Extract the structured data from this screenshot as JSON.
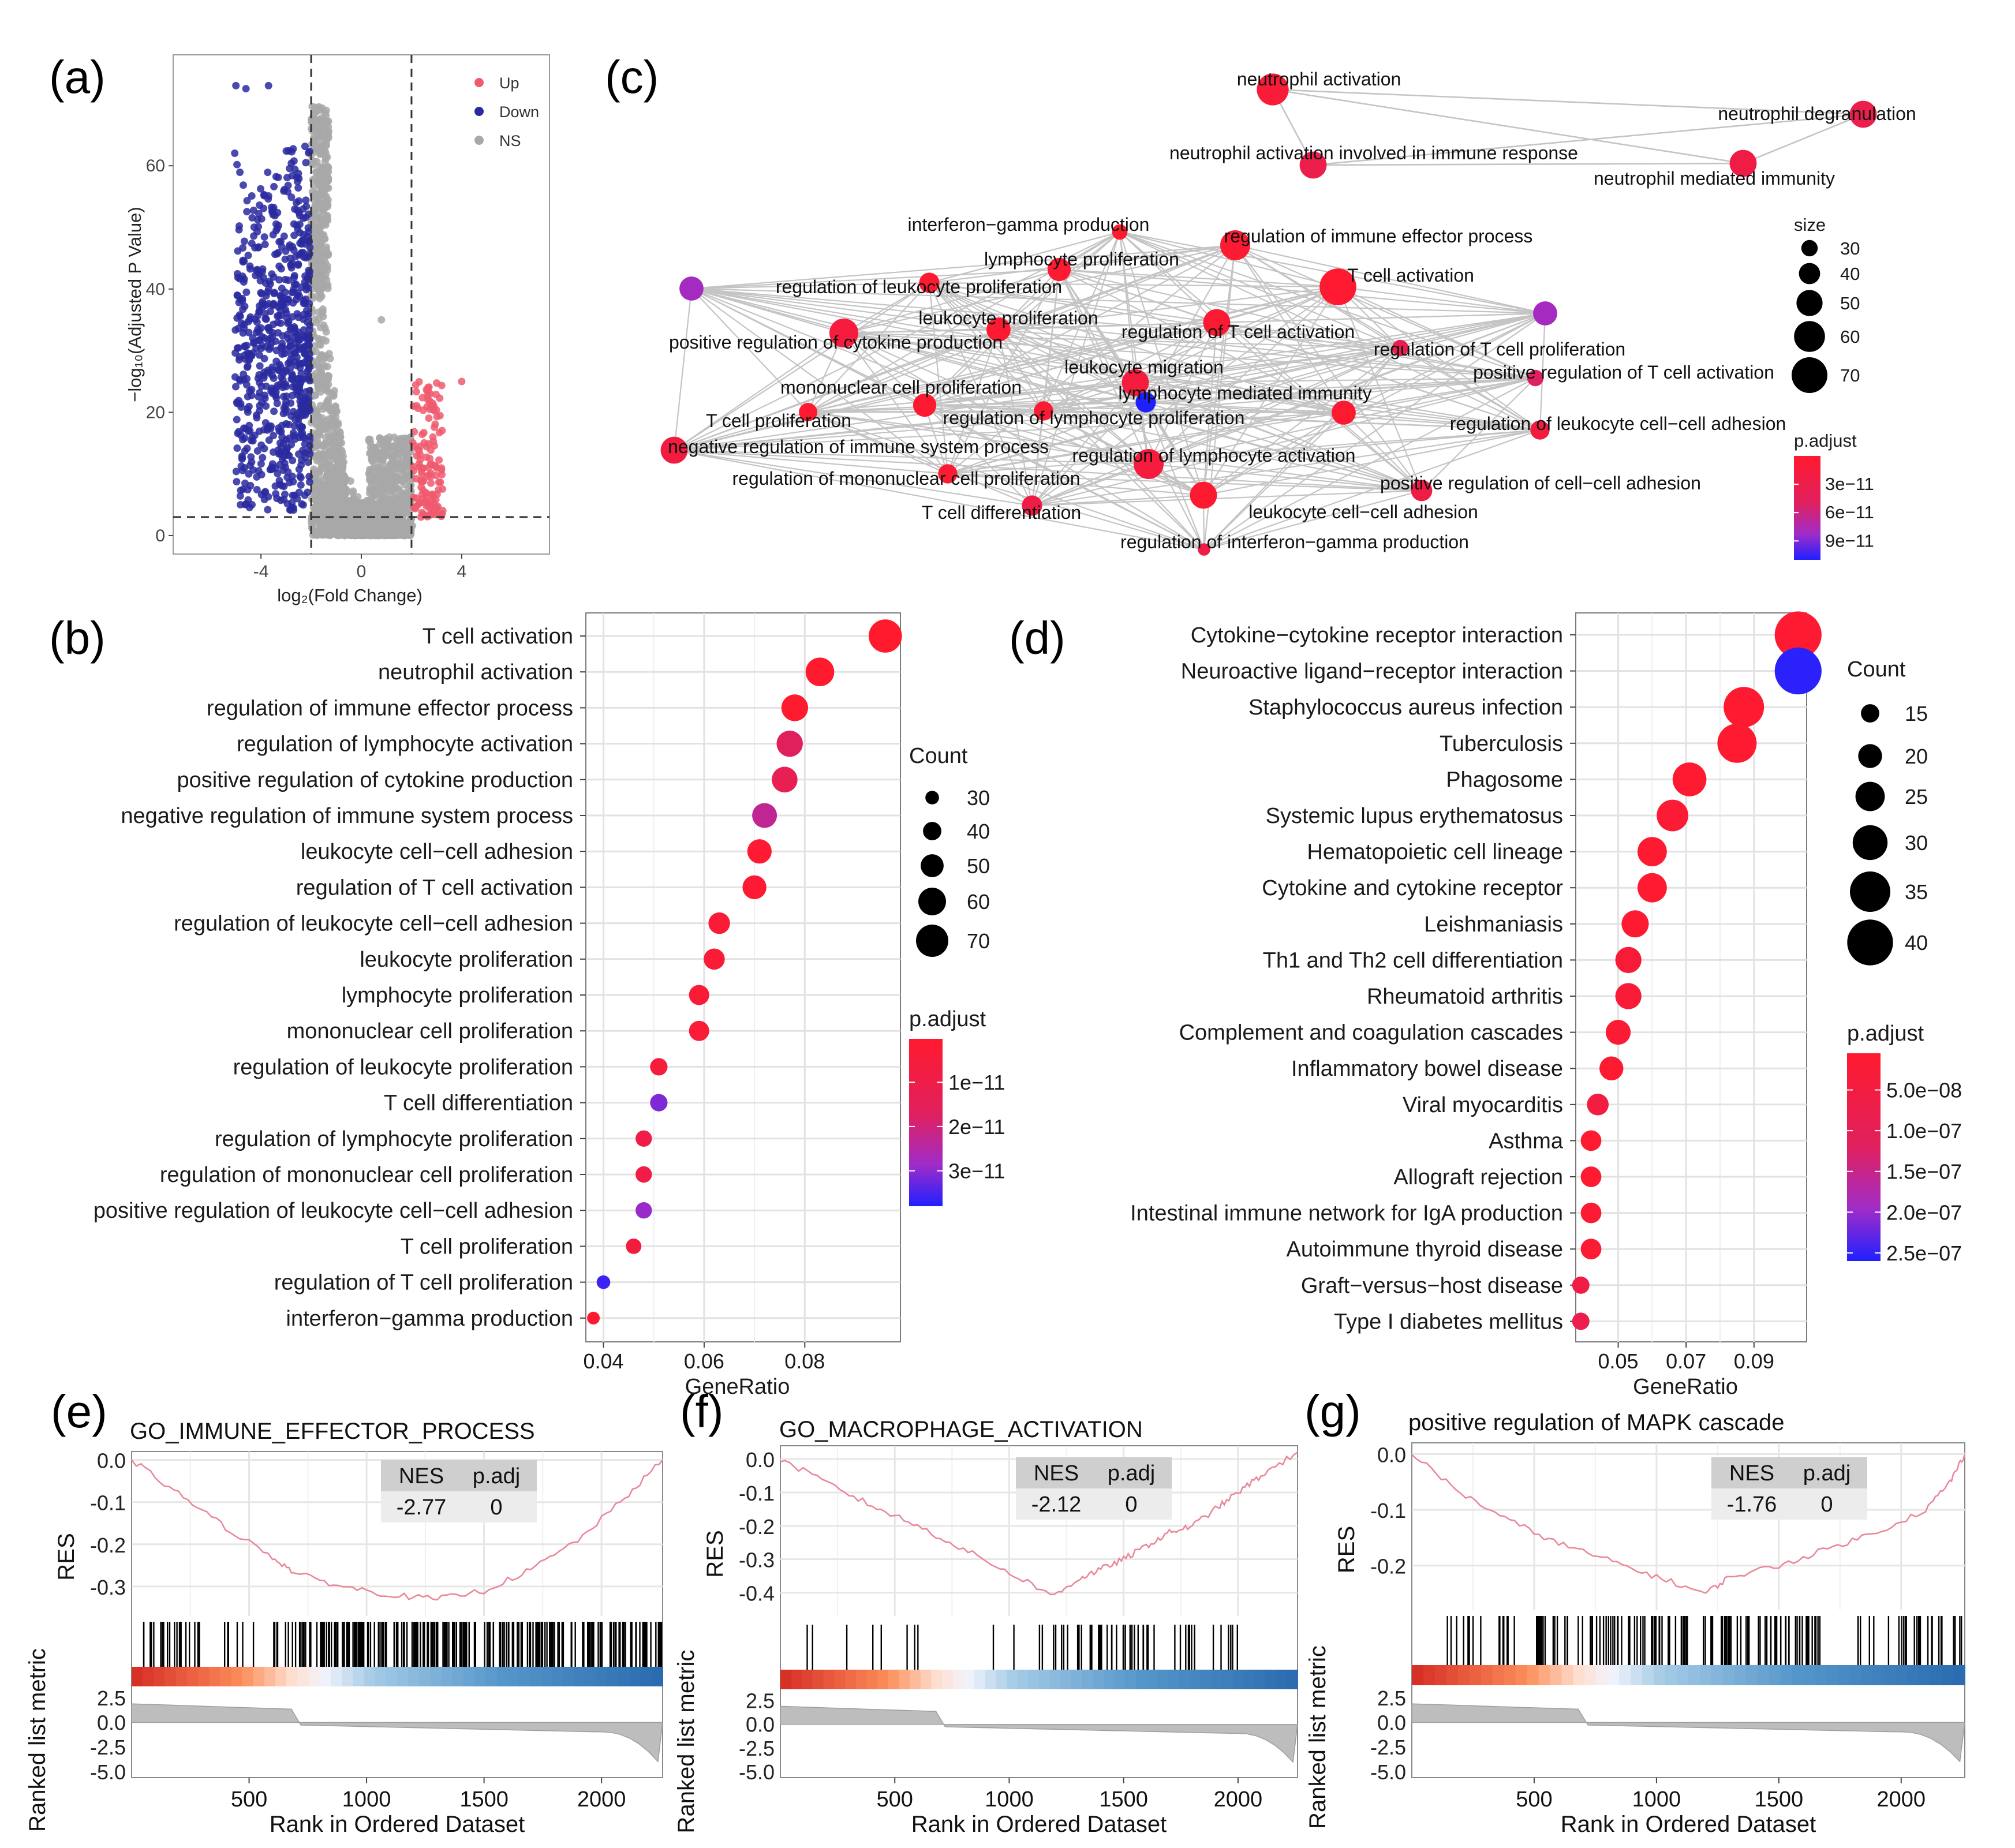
{
  "panel_labels": {
    "a": "(a)",
    "b": "(b)",
    "c": "(c)",
    "d": "(d)",
    "e": "(e)",
    "f": "(f)",
    "g": "(g)"
  },
  "chart_data": [
    {
      "panel": "(a)",
      "type": "scatter",
      "title": "",
      "xlabel": "log₂(Fold Change)",
      "ylabel": "−log₁₀(Adjusted P Value)",
      "x_ticks": [
        "-4",
        "0",
        "4"
      ],
      "x_tick_values": [
        -4,
        0,
        4
      ],
      "y_ticks": [
        "0",
        "20",
        "40",
        "60"
      ],
      "y_tick_values": [
        0,
        20,
        40,
        60
      ],
      "xlim": [
        -7.5,
        7.5
      ],
      "ylim": [
        -3,
        78
      ],
      "thresholds": {
        "log2fc": [
          -2,
          2
        ],
        "neglog10p": 3
      },
      "legend": [
        {
          "name": "Up",
          "color": "#f05a6e"
        },
        {
          "name": "Down",
          "color": "#2a2aa0"
        },
        {
          "name": "NS",
          "color": "#a8a8a8"
        }
      ],
      "highlight_points": [
        {
          "group": "Down",
          "x": -5.0,
          "y": 73
        },
        {
          "group": "Down",
          "x": -4.6,
          "y": 72.5
        },
        {
          "group": "Down",
          "x": -3.7,
          "y": 73
        },
        {
          "group": "Up",
          "x": 4.0,
          "y": 25
        },
        {
          "group": "NS",
          "x": 0.8,
          "y": 35
        }
      ]
    },
    {
      "panel": "(b)",
      "type": "scatter",
      "subtype": "dot",
      "xlabel": "GeneRatio",
      "x_ticks": [
        "0.04",
        "0.06",
        "0.08"
      ],
      "x_tick_values": [
        0.04,
        0.06,
        0.08
      ],
      "xlim": [
        0.0365,
        0.099
      ],
      "size_legend": {
        "title": "Count",
        "values": [
          30,
          40,
          50,
          60,
          70
        ]
      },
      "color_legend": {
        "title": "p.adjust",
        "labels": [
          "1e−11",
          "2e−11",
          "3e−11"
        ],
        "values": [
          1e-11,
          2e-11,
          3e-11
        ],
        "range": [
          2e-13,
          3.8e-11
        ]
      },
      "terms": [
        {
          "term": "T cell activation",
          "ratio": 0.096,
          "count": 72,
          "padj": 1e-13
        },
        {
          "term": "neutrophil activation",
          "ratio": 0.083,
          "count": 62,
          "padj": 3e-13
        },
        {
          "term": "regulation of immune effector process",
          "ratio": 0.078,
          "count": 58,
          "padj": 6e-13
        },
        {
          "term": "regulation of lymphocyte activation",
          "ratio": 0.077,
          "count": 57,
          "padj": 1.7e-11
        },
        {
          "term": "positive regulation of cytokine production",
          "ratio": 0.076,
          "count": 56,
          "padj": 1.3e-11
        },
        {
          "term": "negative regulation of immune system process",
          "ratio": 0.072,
          "count": 54,
          "padj": 2.3e-11
        },
        {
          "term": "leukocyte cell−cell adhesion",
          "ratio": 0.071,
          "count": 53,
          "padj": 1.5e-12
        },
        {
          "term": "regulation of T cell activation",
          "ratio": 0.07,
          "count": 52,
          "padj": 1.5e-12
        },
        {
          "term": "regulation of leukocyte cell−cell adhesion",
          "ratio": 0.063,
          "count": 47,
          "padj": 3e-12
        },
        {
          "term": "leukocyte proliferation",
          "ratio": 0.062,
          "count": 46,
          "padj": 3e-12
        },
        {
          "term": "lymphocyte proliferation",
          "ratio": 0.059,
          "count": 44,
          "padj": 3e-12
        },
        {
          "term": "mononuclear cell proliferation",
          "ratio": 0.059,
          "count": 44,
          "padj": 3e-12
        },
        {
          "term": "regulation of leukocyte proliferation",
          "ratio": 0.051,
          "count": 38,
          "padj": 5e-12
        },
        {
          "term": "T cell differentiation",
          "ratio": 0.051,
          "count": 38,
          "padj": 3.1e-11
        },
        {
          "term": "regulation of lymphocyte proliferation",
          "ratio": 0.048,
          "count": 36,
          "padj": 9e-12
        },
        {
          "term": "regulation of mononuclear cell proliferation",
          "ratio": 0.048,
          "count": 36,
          "padj": 9e-12
        },
        {
          "term": "positive regulation of leukocyte cell−cell adhesion",
          "ratio": 0.048,
          "count": 36,
          "padj": 2.9e-11
        },
        {
          "term": "T cell proliferation",
          "ratio": 0.046,
          "count": 34,
          "padj": 6e-12
        },
        {
          "term": "regulation of T cell proliferation",
          "ratio": 0.04,
          "count": 30,
          "padj": 3.6e-11
        },
        {
          "term": "interferon−gamma production",
          "ratio": 0.038,
          "count": 28,
          "padj": 1.5e-12
        }
      ]
    },
    {
      "panel": "(c)",
      "type": "network",
      "size_legend": {
        "title": "size",
        "values": [
          30,
          40,
          50,
          60,
          70
        ]
      },
      "color_legend": {
        "title": "p.adjust",
        "labels": [
          "3e−11",
          "6e−11",
          "9e−11"
        ],
        "values": [
          3e-11,
          6e-11,
          9e-11
        ],
        "range": [
          0,
          1.1e-10
        ]
      },
      "nodes": [
        {
          "id": "n1",
          "label": "neutrophil activation",
          "size": 62,
          "padj": 1e-11
        },
        {
          "id": "n2",
          "label": "neutrophil degranulation",
          "size": 52,
          "padj": 3e-11
        },
        {
          "id": "n3",
          "label": "neutrophil activation involved in immune response",
          "size": 52,
          "padj": 3e-11
        },
        {
          "id": "n4",
          "label": "neutrophil mediated immunity",
          "size": 52,
          "padj": 2.5e-11
        },
        {
          "id": "c1",
          "label": "interferon−gamma production",
          "size": 28,
          "padj": 1e-12
        },
        {
          "id": "c2",
          "label": "regulation of immune effector process",
          "size": 58,
          "padj": 5e-12
        },
        {
          "id": "c3",
          "label": "lymphocyte proliferation",
          "size": 44,
          "padj": 2e-12
        },
        {
          "id": "c4",
          "label": "regulation of leukocyte proliferation",
          "size": 38,
          "padj": 3e-12
        },
        {
          "id": "c5",
          "label": "T cell activation",
          "size": 72,
          "padj": 2e-12
        },
        {
          "id": "c6",
          "label": "",
          "size": 46,
          "padj": 8e-11
        },
        {
          "id": "c7",
          "label": "",
          "size": 46,
          "padj": 8e-11
        },
        {
          "id": "c8",
          "label": "leukocyte proliferation",
          "size": 46,
          "padj": 3e-12
        },
        {
          "id": "c9",
          "label": "regulation of T cell activation",
          "size": 52,
          "padj": 4e-12
        },
        {
          "id": "c10",
          "label": "positive regulation of cytokine production",
          "size": 56,
          "padj": 1.5e-11
        },
        {
          "id": "c11",
          "label": "regulation of T cell proliferation",
          "size": 30,
          "padj": 3.5e-11
        },
        {
          "id": "c12",
          "label": "positive regulation of T cell activation",
          "size": 30,
          "padj": 5e-11
        },
        {
          "id": "c13",
          "label": "leukocyte migration",
          "size": 52,
          "padj": 1.5e-11
        },
        {
          "id": "c14",
          "label": "lymphocyte mediated immunity",
          "size": 38,
          "padj": 1.1e-10
        },
        {
          "id": "c15",
          "label": "mononuclear cell proliferation",
          "size": 44,
          "padj": 3e-12
        },
        {
          "id": "c16",
          "label": "T cell proliferation",
          "size": 34,
          "padj": 3e-12
        },
        {
          "id": "c17",
          "label": "regulation of lymphocyte proliferation",
          "size": 36,
          "padj": 6e-12
        },
        {
          "id": "c18",
          "label": "",
          "size": 46,
          "padj": 3e-12
        },
        {
          "id": "c19",
          "label": "regulation of leukocyte cell−cell adhesion",
          "size": 36,
          "padj": 2e-11
        },
        {
          "id": "c20",
          "label": "negative regulation of immune system process",
          "size": 52,
          "padj": 2e-11
        },
        {
          "id": "c21",
          "label": "regulation of lymphocyte activation",
          "size": 58,
          "padj": 1.5e-11
        },
        {
          "id": "c22",
          "label": "regulation of mononuclear cell proliferation",
          "size": 36,
          "padj": 5e-12
        },
        {
          "id": "c23",
          "label": "leukocyte cell−cell adhesion",
          "size": 52,
          "padj": 3e-12
        },
        {
          "id": "c24",
          "label": "positive regulation of cell−cell adhesion",
          "size": 40,
          "padj": 2.5e-11
        },
        {
          "id": "c25",
          "label": "T cell differentiation",
          "size": 38,
          "padj": 2.5e-11
        },
        {
          "id": "c26",
          "label": "regulation of interferon−gamma production",
          "size": 22,
          "padj": 2.5e-11
        }
      ]
    },
    {
      "panel": "(d)",
      "type": "scatter",
      "subtype": "dot",
      "xlabel": "GeneRatio",
      "x_ticks": [
        "0.05",
        "0.07",
        "0.09"
      ],
      "x_tick_values": [
        0.05,
        0.07,
        0.09
      ],
      "xlim": [
        0.0375,
        0.1055
      ],
      "size_legend": {
        "title": "Count",
        "values": [
          15,
          20,
          25,
          30,
          35,
          40
        ]
      },
      "color_legend": {
        "title": "p.adjust",
        "labels": [
          "5.0e−08",
          "1.0e−07",
          "1.5e−07",
          "2.0e−07",
          "2.5e−07"
        ],
        "values": [
          5e-08,
          1e-07,
          1.5e-07,
          2e-07,
          2.5e-07
        ],
        "range": [
          5e-09,
          2.6e-07
        ]
      },
      "terms": [
        {
          "term": "Cytokine−cytokine receptor interaction",
          "ratio": 0.103,
          "count": 41,
          "padj": 1e-08
        },
        {
          "term": "Neuroactive ligand−receptor interaction",
          "ratio": 0.103,
          "count": 41,
          "padj": 2.55e-07
        },
        {
          "term": "Staphylococcus aureus infection",
          "ratio": 0.087,
          "count": 35,
          "padj": 1e-08
        },
        {
          "term": "Tuberculosis",
          "ratio": 0.085,
          "count": 34,
          "padj": 1e-08
        },
        {
          "term": "Phagosome",
          "ratio": 0.071,
          "count": 29,
          "padj": 1e-08
        },
        {
          "term": "Systemic lupus erythematosus",
          "ratio": 0.066,
          "count": 27,
          "padj": 2e-08
        },
        {
          "term": "Hematopoietic cell lineage",
          "ratio": 0.06,
          "count": 25,
          "padj": 1e-08
        },
        {
          "term": "Cytokine and cytokine receptor",
          "ratio": 0.06,
          "count": 25,
          "padj": 1e-08
        },
        {
          "term": "Leishmaniasis",
          "ratio": 0.055,
          "count": 23,
          "padj": 1e-08
        },
        {
          "term": "Th1 and Th2 cell differentiation",
          "ratio": 0.053,
          "count": 22,
          "padj": 3e-08
        },
        {
          "term": "Rheumatoid arthritis",
          "ratio": 0.053,
          "count": 22,
          "padj": 3e-08
        },
        {
          "term": "Complement and coagulation cascades",
          "ratio": 0.05,
          "count": 21,
          "padj": 2e-08
        },
        {
          "term": "Inflammatory bowel disease",
          "ratio": 0.048,
          "count": 20,
          "padj": 1e-08
        },
        {
          "term": "Viral myocarditis",
          "ratio": 0.044,
          "count": 18,
          "padj": 5e-08
        },
        {
          "term": "Asthma",
          "ratio": 0.042,
          "count": 17,
          "padj": 1e-08
        },
        {
          "term": "Allograft rejection",
          "ratio": 0.042,
          "count": 17,
          "padj": 1e-08
        },
        {
          "term": "Intestinal immune network for IgA production",
          "ratio": 0.042,
          "count": 17,
          "padj": 2e-08
        },
        {
          "term": "Autoimmune thyroid disease",
          "ratio": 0.042,
          "count": 17,
          "padj": 2e-08
        },
        {
          "term": "Graft−versus−host disease",
          "ratio": 0.039,
          "count": 14,
          "padj": 6e-08
        },
        {
          "term": "Type I diabetes mellitus",
          "ratio": 0.039,
          "count": 14,
          "padj": 8e-08
        }
      ]
    },
    {
      "panel": "(e)",
      "type": "line",
      "subtype": "gsea",
      "title": "GO_IMMUNE_EFFECTOR_PROCESS",
      "nes": "-2.77",
      "padj": "0",
      "table_headers": [
        "NES",
        "p.adj"
      ],
      "ylabel_top": "RES",
      "ylabel_bottom": "Ranked list metric",
      "xlabel": "Rank in Ordered Dataset",
      "x_ticks": [
        "500",
        "1000",
        "1500",
        "2000"
      ],
      "x_tick_values": [
        500,
        1000,
        1500,
        2000
      ],
      "xlim": [
        0,
        2260
      ],
      "res_ticks": [
        "0.0",
        "-0.1",
        "-0.2",
        "-0.3"
      ],
      "res_tick_values": [
        0,
        -0.1,
        -0.2,
        -0.3
      ],
      "res_ylim": [
        -0.37,
        0.02
      ],
      "metric_ticks": [
        "2.5",
        "0.0",
        "-2.5",
        "-5.0"
      ],
      "metric_tick_values": [
        2.5,
        0,
        -2.5,
        -5
      ],
      "running_score": {
        "x": [
          0,
          200,
          400,
          600,
          700,
          900,
          1100,
          1300,
          1500,
          1700,
          1900,
          2100,
          2260
        ],
        "y": [
          0,
          -0.08,
          -0.16,
          -0.23,
          -0.27,
          -0.3,
          -0.32,
          -0.33,
          -0.31,
          -0.26,
          -0.19,
          -0.09,
          0
        ]
      }
    },
    {
      "panel": "(f)",
      "type": "line",
      "subtype": "gsea",
      "title": "GO_MACROPHAGE_ACTIVATION",
      "nes": "-2.12",
      "padj": "0",
      "table_headers": [
        "NES",
        "p.adj"
      ],
      "ylabel_top": "RES",
      "ylabel_bottom": "Ranked list metric",
      "xlabel": "Rank in Ordered Dataset",
      "x_ticks": [
        "500",
        "1000",
        "1500",
        "2000"
      ],
      "x_tick_values": [
        500,
        1000,
        1500,
        2000
      ],
      "xlim": [
        0,
        2260
      ],
      "res_ticks": [
        "0.0",
        "-0.1",
        "-0.2",
        "-0.3",
        "-0.4"
      ],
      "res_tick_values": [
        0,
        -0.1,
        -0.2,
        -0.3,
        -0.4
      ],
      "res_ylim": [
        -0.47,
        0.04
      ],
      "metric_ticks": [
        "2.5",
        "0.0",
        "-2.5",
        "-5.0"
      ],
      "metric_tick_values": [
        2.5,
        0,
        -2.5,
        -5
      ],
      "running_score": {
        "x": [
          0,
          200,
          400,
          600,
          800,
          1000,
          1200,
          1300,
          1400,
          1500,
          1600,
          1700,
          1800,
          1900,
          2000,
          2100,
          2260
        ],
        "y": [
          0,
          -0.07,
          -0.14,
          -0.2,
          -0.27,
          -0.34,
          -0.41,
          -0.36,
          -0.33,
          -0.3,
          -0.26,
          -0.22,
          -0.2,
          -0.15,
          -0.1,
          -0.05,
          0.02
        ]
      }
    },
    {
      "panel": "(g)",
      "type": "line",
      "subtype": "gsea",
      "title": "positive regulation of MAPK cascade",
      "nes": "-1.76",
      "padj": "0",
      "table_headers": [
        "NES",
        "p.adj"
      ],
      "ylabel_top": "RES",
      "ylabel_bottom": "Ranked list metric",
      "xlabel": "Rank in Ordered Dataset",
      "x_ticks": [
        "500",
        "1000",
        "1500",
        "2000"
      ],
      "x_tick_values": [
        500,
        1000,
        1500,
        2000
      ],
      "xlim": [
        0,
        2260
      ],
      "res_ticks": [
        "0.0",
        "-0.1",
        "-0.2"
      ],
      "res_tick_values": [
        0,
        -0.1,
        -0.2
      ],
      "res_ylim": [
        -0.28,
        0.02
      ],
      "metric_ticks": [
        "2.5",
        "0.0",
        "-2.5",
        "-5.0"
      ],
      "metric_tick_values": [
        2.5,
        0,
        -2.5,
        -5
      ],
      "running_score": {
        "x": [
          0,
          200,
          400,
          600,
          800,
          1000,
          1200,
          1300,
          1500,
          1700,
          1900,
          2100,
          2200,
          2260
        ],
        "y": [
          0,
          -0.07,
          -0.12,
          -0.16,
          -0.19,
          -0.22,
          -0.25,
          -0.22,
          -0.2,
          -0.17,
          -0.14,
          -0.1,
          -0.05,
          0
        ]
      }
    }
  ]
}
